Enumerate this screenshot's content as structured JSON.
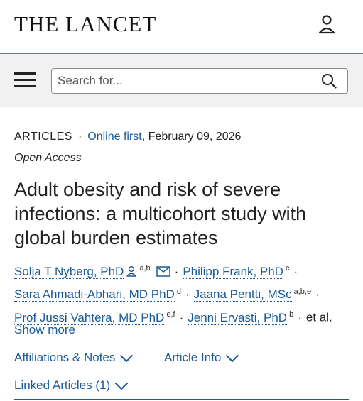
{
  "header": {
    "logo": "THE LANCET",
    "user_icon": "person-icon"
  },
  "search": {
    "placeholder": "Search for...",
    "menu_icon": "hamburger-icon",
    "search_icon": "magnifier-icon"
  },
  "article": {
    "type": "ARTICLES",
    "online_first": "Online first",
    "date": ", February 09, 2026",
    "access": "Open Access",
    "title": "Adult obesity and risk of severe infections: a multicohort study with global burden estimates",
    "authors": [
      {
        "name": "Solja T Nyberg, PhD",
        "sup": "a,b"
      },
      {
        "name": "Philipp Frank, PhD",
        "sup": "c"
      },
      {
        "name": "Sara Ahmadi-Abhari, MD PhD",
        "sup": "d"
      },
      {
        "name": "Jaana Pentti, MSc",
        "sup": "a,b,e"
      },
      {
        "name": "Prof Jussi Vahtera, MD PhD",
        "sup": "e,f"
      },
      {
        "name": "Jenni Ervasti, PhD",
        "sup": "b"
      }
    ],
    "et_al": "et al.",
    "show_more": "Show more",
    "affiliations": "Affiliations & Notes",
    "article_info": "Article Info",
    "linked_articles": "Linked Articles (1)"
  },
  "colors": {
    "link": "#1a5a96",
    "search_bg": "#f1f1f1",
    "divider": "#6e7a86"
  }
}
